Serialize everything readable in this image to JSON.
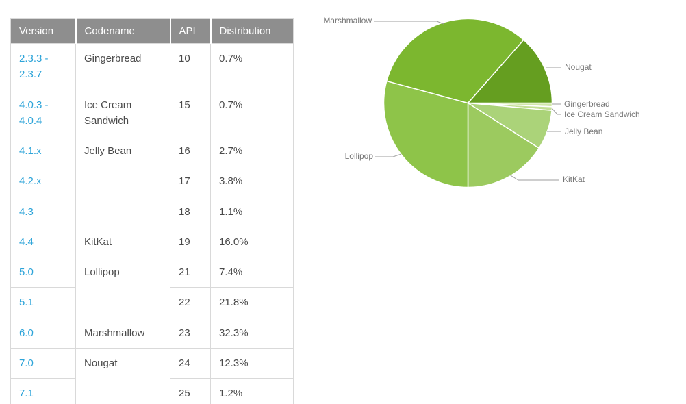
{
  "table": {
    "headers": [
      "Version",
      "Codename",
      "API",
      "Distribution"
    ],
    "rows": [
      {
        "version": "2.3.3 - 2.3.7",
        "codename": "Gingerbread",
        "codename_span": 1,
        "api": "10",
        "distribution": "0.7%"
      },
      {
        "version": "4.0.3 - 4.0.4",
        "codename": "Ice Cream Sandwich",
        "codename_span": 1,
        "api": "15",
        "distribution": "0.7%"
      },
      {
        "version": "4.1.x",
        "codename": "Jelly Bean",
        "codename_span": 3,
        "api": "16",
        "distribution": "2.7%"
      },
      {
        "version": "4.2.x",
        "api": "17",
        "distribution": "3.8%"
      },
      {
        "version": "4.3",
        "api": "18",
        "distribution": "1.1%"
      },
      {
        "version": "4.4",
        "codename": "KitKat",
        "codename_span": 1,
        "api": "19",
        "distribution": "16.0%"
      },
      {
        "version": "5.0",
        "codename": "Lollipop",
        "codename_span": 2,
        "api": "21",
        "distribution": "7.4%"
      },
      {
        "version": "5.1",
        "api": "22",
        "distribution": "21.8%"
      },
      {
        "version": "6.0",
        "codename": "Marshmallow",
        "codename_span": 1,
        "api": "23",
        "distribution": "32.3%"
      },
      {
        "version": "7.0",
        "codename": "Nougat",
        "codename_span": 2,
        "api": "24",
        "distribution": "12.3%"
      },
      {
        "version": "7.1",
        "api": "25",
        "distribution": "1.2%"
      }
    ]
  },
  "chart_data": {
    "type": "pie",
    "direction": "clockwise",
    "start_angle_deg": 0,
    "legend_position": "labels-with-leader-lines",
    "slices": [
      {
        "label": "Gingerbread",
        "value": 0.7,
        "color": "#d2e7ab"
      },
      {
        "label": "Ice Cream Sandwich",
        "value": 0.7,
        "color": "#c4df96"
      },
      {
        "label": "Jelly Bean",
        "value": 7.6,
        "color": "#abd379"
      },
      {
        "label": "KitKat",
        "value": 16.0,
        "color": "#9cca5f"
      },
      {
        "label": "Lollipop",
        "value": 29.2,
        "color": "#8ec449"
      },
      {
        "label": "Marshmallow",
        "value": 32.3,
        "color": "#7cb72f"
      },
      {
        "label": "Nougat",
        "value": 13.5,
        "color": "#659e20"
      }
    ]
  },
  "ui_colors": {
    "link_blue": "#2da4d9",
    "header_gray": "#8e8e8e",
    "border_gray": "#d9d9d9",
    "label_gray": "#757575"
  }
}
